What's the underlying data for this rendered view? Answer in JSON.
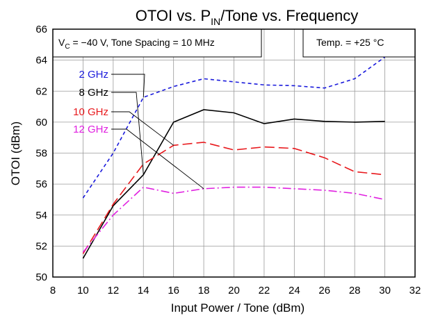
{
  "chart_data": {
    "type": "line",
    "title": {
      "main": "OTOI vs. P",
      "sub": "IN",
      "rest": "/Tone vs. Frequency"
    },
    "xlabel": "Input Power / Tone (dBm)",
    "ylabel": "OTOI (dBm)",
    "xlim": [
      8,
      32
    ],
    "ylim": [
      50,
      66
    ],
    "xticks": [
      "8",
      "10",
      "12",
      "14",
      "16",
      "18",
      "20",
      "22",
      "24",
      "26",
      "28",
      "30",
      "32"
    ],
    "yticks": [
      "50",
      "52",
      "54",
      "56",
      "58",
      "60",
      "62",
      "64",
      "66"
    ],
    "grid": true,
    "annotations": {
      "conditions_pre": "V",
      "conditions_sub": "C",
      "conditions_post": " = −40 V, Tone Spacing = 10 MHz",
      "temperature": "Temp. = +25 °C"
    },
    "series": [
      {
        "name": "2 GHz",
        "color": "#1a1adc",
        "dash": "5,4",
        "x": [
          10,
          12,
          14,
          16,
          18,
          20,
          22,
          24,
          26,
          28,
          30
        ],
        "y": [
          55.1,
          58.0,
          61.6,
          62.3,
          62.8,
          62.6,
          62.4,
          62.35,
          62.2,
          62.8,
          64.2
        ]
      },
      {
        "name": "8 GHz",
        "color": "#000000",
        "dash": "",
        "x": [
          10,
          12,
          14,
          16,
          18,
          20,
          22,
          24,
          26,
          28,
          30
        ],
        "y": [
          51.2,
          54.6,
          56.6,
          60.0,
          60.8,
          60.6,
          59.9,
          60.2,
          60.05,
          60.0,
          60.05
        ]
      },
      {
        "name": "10 GHz",
        "color": "#e8181c",
        "dash": "14,6",
        "x": [
          10,
          12,
          14,
          16,
          18,
          20,
          22,
          24,
          26,
          28,
          30
        ],
        "y": [
          51.5,
          54.7,
          57.3,
          58.5,
          58.7,
          58.2,
          58.4,
          58.3,
          57.7,
          56.8,
          56.6
        ]
      },
      {
        "name": "12 GHz",
        "color": "#e020e0",
        "dash": "12,4,2,4",
        "x": [
          10,
          12,
          14,
          16,
          18,
          20,
          22,
          24,
          26,
          28,
          30
        ],
        "y": [
          51.6,
          54.0,
          55.8,
          55.4,
          55.7,
          55.8,
          55.8,
          55.7,
          55.6,
          55.4,
          55.0
        ]
      }
    ]
  }
}
